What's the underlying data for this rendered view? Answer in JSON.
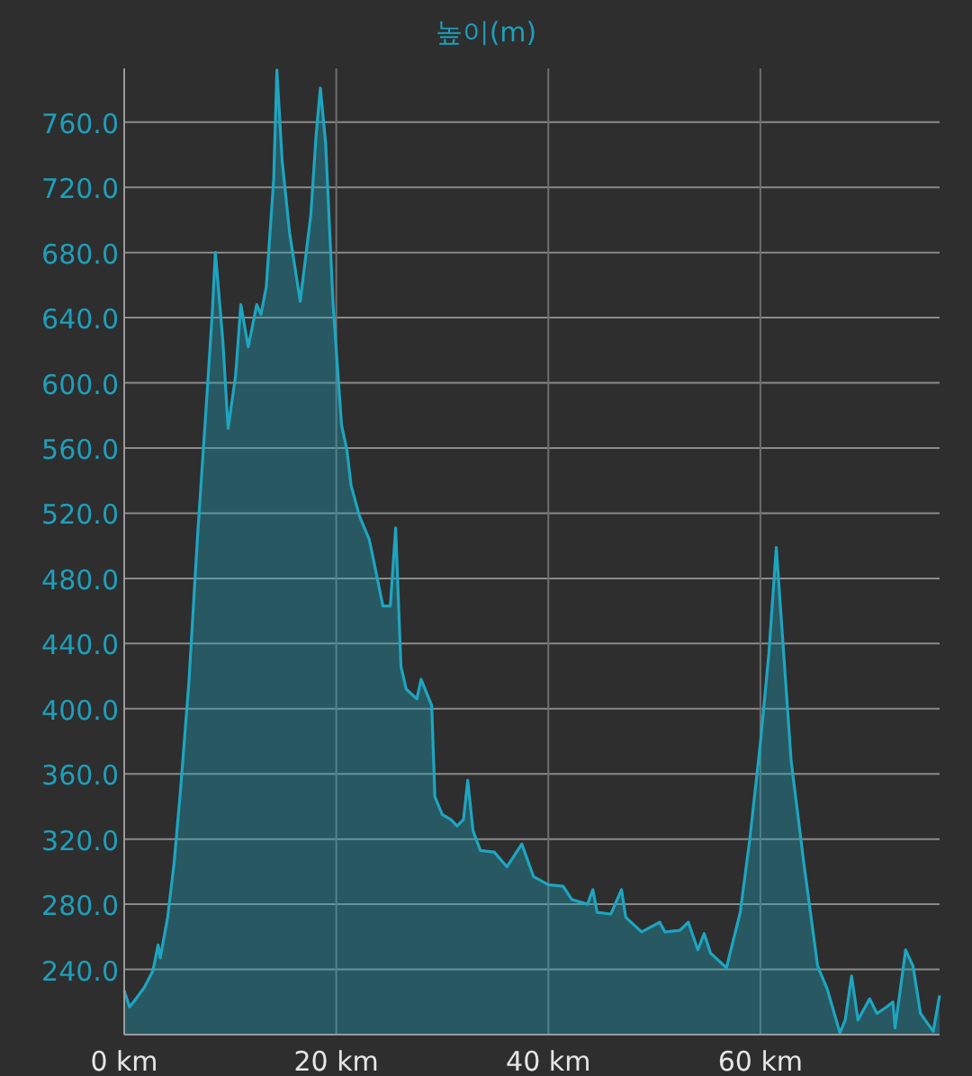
{
  "chart_data": {
    "type": "area",
    "title": "높이(m)",
    "color": "#1ea5c0",
    "grid": true,
    "xlim": [
      0,
      76.9
    ],
    "ylim": [
      200,
      793
    ],
    "xticks": [
      {
        "value": 0,
        "label": "0 km"
      },
      {
        "value": 20,
        "label": "20 km"
      },
      {
        "value": 40,
        "label": "40 km"
      },
      {
        "value": 60,
        "label": "60 km"
      }
    ],
    "yticks": [
      {
        "value": 240,
        "label": "240.0"
      },
      {
        "value": 280,
        "label": "280.0"
      },
      {
        "value": 320,
        "label": "320.0"
      },
      {
        "value": 360,
        "label": "360.0"
      },
      {
        "value": 400,
        "label": "400.0"
      },
      {
        "value": 440,
        "label": "440.0"
      },
      {
        "value": 480,
        "label": "480.0"
      },
      {
        "value": 520,
        "label": "520.0"
      },
      {
        "value": 560,
        "label": "560.0"
      },
      {
        "value": 600,
        "label": "600.0"
      },
      {
        "value": 640,
        "label": "640.0"
      },
      {
        "value": 680,
        "label": "680.0"
      },
      {
        "value": 720,
        "label": "720.0"
      },
      {
        "value": 760,
        "label": "760.0"
      }
    ],
    "x": [
      0,
      0.5,
      1.0,
      1.9,
      2.7,
      3.2,
      3.4,
      4.1,
      4.7,
      5.3,
      6.1,
      6.9,
      7.8,
      8.3,
      8.6,
      9.3,
      9.8,
      10.5,
      11.0,
      11.7,
      12.5,
      12.9,
      13.4,
      14.1,
      14.4,
      14.9,
      15.6,
      16.6,
      17.6,
      18.1,
      18.5,
      19.0,
      19.7,
      20.5,
      21.0,
      21.4,
      22.2,
      23.1,
      23.4,
      24.4,
      25.1,
      25.6,
      26.1,
      26.6,
      27.6,
      28.0,
      29.0,
      29.3,
      30.0,
      30.8,
      31.4,
      32.0,
      32.4,
      32.9,
      33.6,
      34.9,
      36.1,
      37.5,
      38.6,
      40.0,
      41.4,
      42.2,
      43.7,
      44.2,
      44.6,
      45.9,
      46.9,
      47.3,
      48.8,
      50.5,
      51.0,
      52.4,
      53.2,
      54.1,
      54.7,
      55.3,
      56.8,
      58.1,
      59.0,
      60.0,
      60.8,
      61.5,
      62.0,
      62.9,
      64.1,
      65.4,
      66.3,
      67.5,
      68.0,
      68.6,
      69.2,
      70.3,
      71.0,
      71.9,
      72.5,
      72.7,
      73.7,
      74.4,
      75.1,
      76.3,
      76.9
    ],
    "values": [
      227,
      217,
      221,
      229,
      239,
      255,
      247,
      272,
      305,
      349,
      416,
      504,
      592,
      642,
      680,
      626,
      572,
      604,
      648,
      622,
      648,
      642,
      659,
      725,
      792,
      736,
      692,
      650,
      703,
      752,
      781,
      747,
      648,
      574,
      559,
      537,
      518,
      504,
      495,
      463,
      463,
      511,
      426,
      412,
      406,
      418,
      402,
      346,
      335,
      332,
      328,
      332,
      356,
      325,
      313,
      312,
      303,
      317,
      297,
      292,
      291,
      283,
      280,
      289,
      275,
      274,
      289,
      272,
      263,
      269,
      263,
      264,
      269,
      252,
      262,
      250,
      241,
      275,
      320,
      379,
      434,
      499,
      452,
      368,
      305,
      242,
      228,
      201,
      209,
      236,
      209,
      222,
      213,
      217,
      220,
      204,
      252,
      242,
      213,
      202,
      224
    ]
  }
}
